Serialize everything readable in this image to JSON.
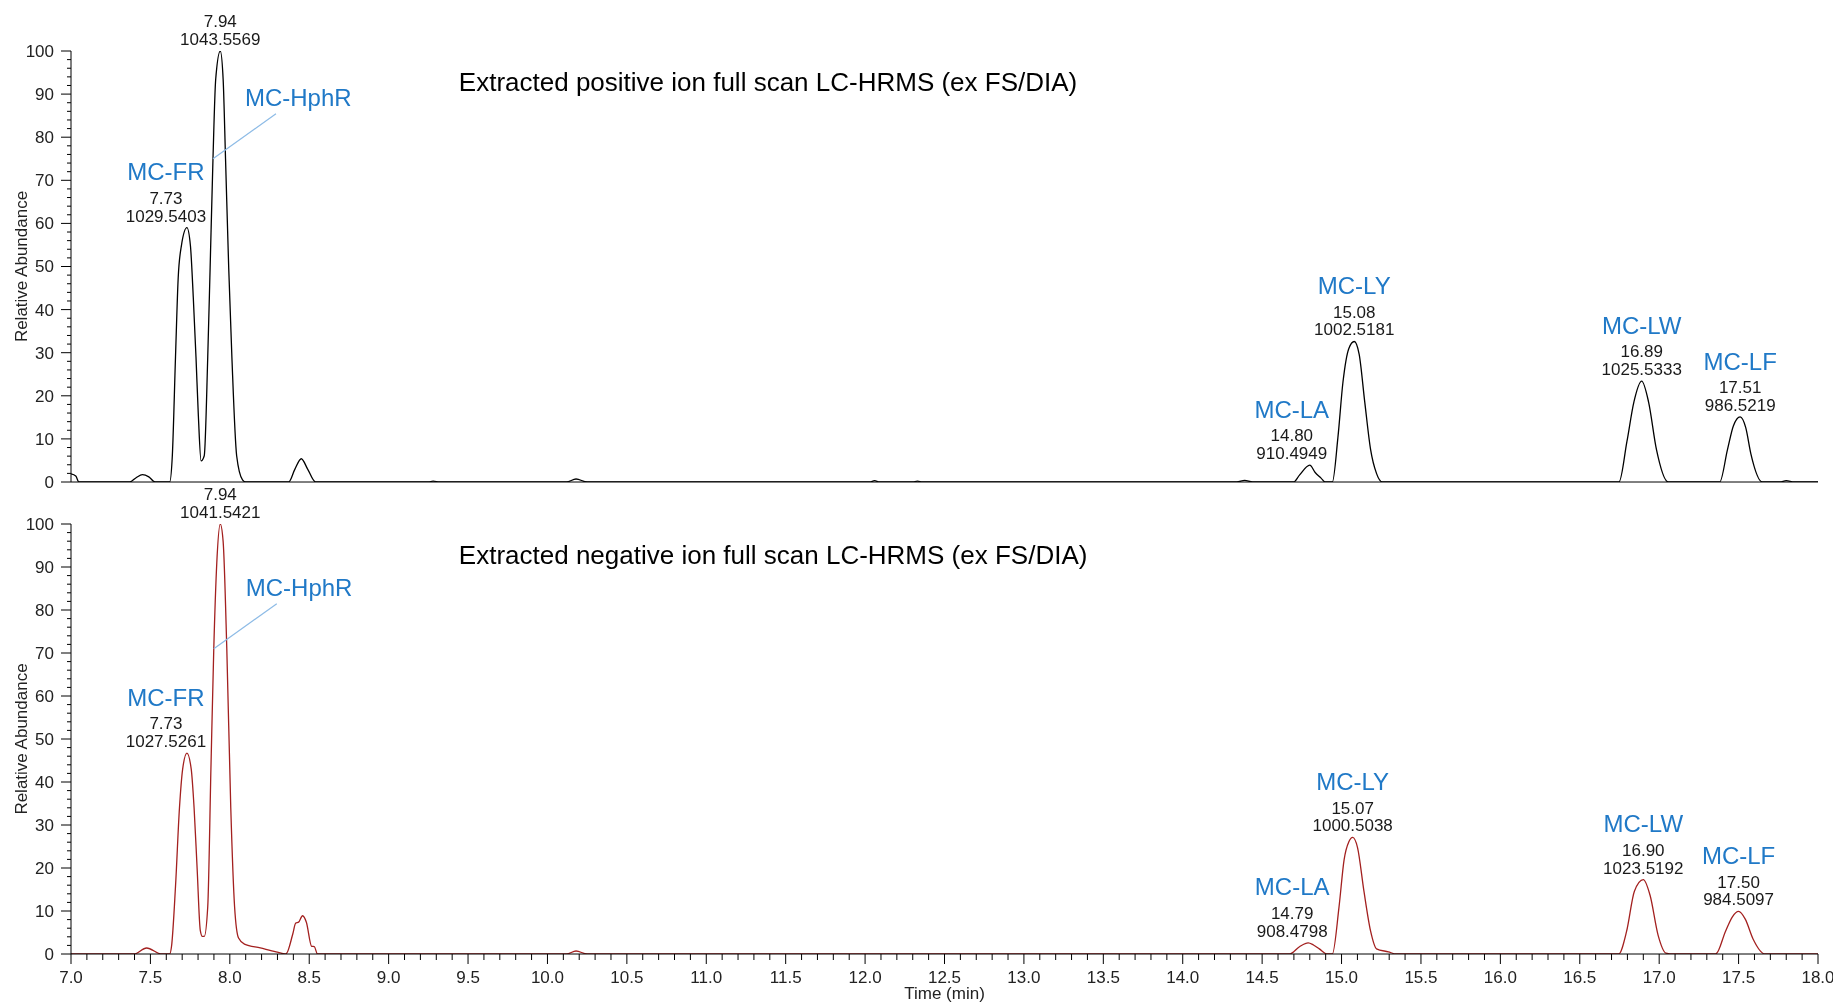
{
  "chart_data": [
    {
      "type": "line",
      "title": "Extracted positive ion full scan LC-HRMS (ex FS/DIA)",
      "ylabel": "Relative Abundance",
      "xlim": [
        7,
        18
      ],
      "ylim": [
        0,
        100
      ],
      "tick_labels": "y",
      "yticks": [
        0,
        {
          "value": 2,
          "label": null
        },
        {
          "value": 4,
          "label": null
        },
        {
          "value": 6,
          "label": null
        },
        {
          "value": 8,
          "label": null
        },
        10,
        {
          "value": 12,
          "label": null
        },
        {
          "value": 14,
          "label": null
        },
        {
          "value": 16,
          "label": null
        },
        {
          "value": 18,
          "label": null
        },
        20,
        {
          "value": 22,
          "label": null
        },
        {
          "value": 24,
          "label": null
        },
        {
          "value": 26,
          "label": null
        },
        {
          "value": 28,
          "label": null
        },
        30,
        {
          "value": 32,
          "label": null
        },
        {
          "value": 34,
          "label": null
        },
        {
          "value": 36,
          "label": null
        },
        {
          "value": 38,
          "label": null
        },
        40,
        {
          "value": 42,
          "label": null
        },
        {
          "value": 44,
          "label": null
        },
        {
          "value": 46,
          "label": null
        },
        {
          "value": 48,
          "label": null
        },
        50,
        {
          "value": 52,
          "label": null
        },
        {
          "value": 54,
          "label": null
        },
        {
          "value": 56,
          "label": null
        },
        {
          "value": 58,
          "label": null
        },
        60,
        {
          "value": 62,
          "label": null
        },
        {
          "value": 64,
          "label": null
        },
        {
          "value": 66,
          "label": null
        },
        {
          "value": 68,
          "label": null
        },
        70,
        {
          "value": 72,
          "label": null
        },
        {
          "value": 74,
          "label": null
        },
        {
          "value": 76,
          "label": null
        },
        {
          "value": 78,
          "label": null
        },
        80,
        {
          "value": 82,
          "label": null
        },
        {
          "value": 84,
          "label": null
        },
        {
          "value": 86,
          "label": null
        },
        {
          "value": 88,
          "label": null
        },
        90,
        {
          "value": 92,
          "label": null
        },
        {
          "value": 94,
          "label": null
        },
        {
          "value": 96,
          "label": null
        },
        {
          "value": 98,
          "label": null
        },
        100
      ],
      "color": "#000000",
      "x": [
        7.0,
        7.03,
        7.05,
        7.37,
        7.41,
        7.45,
        7.49,
        7.53,
        7.621,
        7.638,
        7.658,
        7.675,
        7.695,
        7.73,
        7.752,
        7.77,
        7.787,
        7.802,
        7.819,
        7.839,
        7.861,
        7.876,
        7.894,
        7.911,
        7.94,
        7.958,
        7.973,
        7.993,
        8.013,
        8.043,
        8.08,
        8.1,
        8.37,
        8.41,
        8.45,
        8.49,
        8.54,
        9.25,
        9.28,
        9.32,
        10.12,
        10.18,
        10.25,
        12.03,
        12.06,
        12.09,
        12.3,
        12.33,
        12.36,
        14.34,
        14.39,
        14.44,
        14.698,
        14.735,
        14.8,
        14.834,
        14.871,
        14.896,
        14.942,
        14.977,
        15.009,
        15.046,
        15.08,
        15.111,
        15.146,
        15.183,
        15.22,
        15.257,
        16.747,
        16.797,
        16.841,
        16.89,
        16.933,
        16.983,
        17.057,
        17.381,
        17.43,
        17.467,
        17.51,
        17.545,
        17.577,
        17.65,
        17.76,
        17.8,
        17.85,
        18.0
      ],
      "values": [
        1.9,
        1.4,
        0,
        0,
        1.0,
        1.7,
        1.2,
        0,
        0,
        6.1,
        29,
        47.4,
        54.8,
        59,
        54.8,
        42.8,
        29,
        15.3,
        4.9,
        6.1,
        29,
        49.7,
        75,
        93.4,
        100,
        93.4,
        75,
        49.7,
        29,
        6.1,
        0.5,
        0,
        0,
        3.0,
        5.4,
        3.0,
        0,
        0,
        0.2,
        0,
        0,
        0.7,
        0,
        0,
        0.3,
        0,
        0,
        0.2,
        0,
        0,
        0.4,
        0,
        0,
        1.6,
        3.9,
        2.2,
        0.9,
        0,
        0,
        10.3,
        23.2,
        31,
        32.6,
        29.6,
        18.6,
        7.5,
        2,
        0,
        0,
        9.4,
        18.6,
        23.4,
        18.6,
        7.5,
        0,
        0,
        7.5,
        13,
        15.1,
        12.6,
        6.6,
        0,
        0,
        0.3,
        0,
        0
      ],
      "annotations": [
        {
          "text": "MC-FR",
          "x": 7.73,
          "y": 59
        },
        {
          "text": "7.73\n1029.5403",
          "x": 7.73,
          "y": 59
        },
        {
          "text": "7.94\n1043.5569",
          "x": 7.94,
          "y": 100
        },
        {
          "text": "MC-HphR",
          "x": 7.894,
          "y": 75
        },
        {
          "text": "MC-LA",
          "x": 14.8,
          "y": 3.9
        },
        {
          "text": "14.80\n910.4949",
          "x": 14.8,
          "y": 3.9
        },
        {
          "text": "MC-LY",
          "x": 15.08,
          "y": 32.6
        },
        {
          "text": "15.08\n1002.5181",
          "x": 15.08,
          "y": 32.6
        },
        {
          "text": "MC-LW",
          "x": 16.89,
          "y": 23.4
        },
        {
          "text": "16.89\n1025.5333",
          "x": 16.89,
          "y": 23.4
        },
        {
          "text": "MC-LF",
          "x": 17.51,
          "y": 15.1
        },
        {
          "text": "17.51\n986.5219",
          "x": 17.51,
          "y": 15.1
        }
      ]
    },
    {
      "type": "line",
      "title": "Extracted negative ion full scan LC-HRMS (ex FS/DIA)",
      "ylabel": "Relative Abundance",
      "xlabel": "Time (min)",
      "xlim": [
        7,
        18
      ],
      "ylim": [
        0,
        100
      ],
      "xticks": [
        {
          "value": 7,
          "label": "7.0"
        },
        {
          "value": 7.1,
          "label": null
        },
        {
          "value": 7.2,
          "label": null
        },
        {
          "value": 7.3,
          "label": null
        },
        {
          "value": 7.4,
          "label": null
        },
        7.5,
        {
          "value": 7.6,
          "label": null
        },
        {
          "value": 7.7,
          "label": null
        },
        {
          "value": 7.8,
          "label": null
        },
        {
          "value": 7.9,
          "label": null
        },
        {
          "value": 8,
          "label": "8.0"
        },
        {
          "value": 8.1,
          "label": null
        },
        {
          "value": 8.2,
          "label": null
        },
        {
          "value": 8.3,
          "label": null
        },
        {
          "value": 8.4,
          "label": null
        },
        8.5,
        {
          "value": 8.6,
          "label": null
        },
        {
          "value": 8.7,
          "label": null
        },
        {
          "value": 8.8,
          "label": null
        },
        {
          "value": 8.9,
          "label": null
        },
        {
          "value": 9,
          "label": "9.0"
        },
        {
          "value": 9.1,
          "label": null
        },
        {
          "value": 9.2,
          "label": null
        },
        {
          "value": 9.3,
          "label": null
        },
        {
          "value": 9.4,
          "label": null
        },
        9.5,
        {
          "value": 9.6,
          "label": null
        },
        {
          "value": 9.7,
          "label": null
        },
        {
          "value": 9.8,
          "label": null
        },
        {
          "value": 9.9,
          "label": null
        },
        {
          "value": 10,
          "label": "10.0"
        },
        {
          "value": 10.1,
          "label": null
        },
        {
          "value": 10.2,
          "label": null
        },
        {
          "value": 10.3,
          "label": null
        },
        {
          "value": 10.4,
          "label": null
        },
        10.5,
        {
          "value": 10.6,
          "label": null
        },
        {
          "value": 10.7,
          "label": null
        },
        {
          "value": 10.8,
          "label": null
        },
        {
          "value": 10.9,
          "label": null
        },
        {
          "value": 11,
          "label": "11.0"
        },
        {
          "value": 11.1,
          "label": null
        },
        {
          "value": 11.2,
          "label": null
        },
        {
          "value": 11.3,
          "label": null
        },
        {
          "value": 11.4,
          "label": null
        },
        11.5,
        {
          "value": 11.6,
          "label": null
        },
        {
          "value": 11.7,
          "label": null
        },
        {
          "value": 11.8,
          "label": null
        },
        {
          "value": 11.9,
          "label": null
        },
        {
          "value": 12,
          "label": "12.0"
        },
        {
          "value": 12.1,
          "label": null
        },
        {
          "value": 12.2,
          "label": null
        },
        {
          "value": 12.3,
          "label": null
        },
        {
          "value": 12.4,
          "label": null
        },
        12.5,
        {
          "value": 12.6,
          "label": null
        },
        {
          "value": 12.7,
          "label": null
        },
        {
          "value": 12.8,
          "label": null
        },
        {
          "value": 12.9,
          "label": null
        },
        {
          "value": 13,
          "label": "13.0"
        },
        {
          "value": 13.1,
          "label": null
        },
        {
          "value": 13.2,
          "label": null
        },
        {
          "value": 13.3,
          "label": null
        },
        {
          "value": 13.4,
          "label": null
        },
        13.5,
        {
          "value": 13.6,
          "label": null
        },
        {
          "value": 13.7,
          "label": null
        },
        {
          "value": 13.8,
          "label": null
        },
        {
          "value": 13.9,
          "label": null
        },
        {
          "value": 14,
          "label": "14.0"
        },
        {
          "value": 14.1,
          "label": null
        },
        {
          "value": 14.2,
          "label": null
        },
        {
          "value": 14.3,
          "label": null
        },
        {
          "value": 14.4,
          "label": null
        },
        14.5,
        {
          "value": 14.6,
          "label": null
        },
        {
          "value": 14.7,
          "label": null
        },
        {
          "value": 14.8,
          "label": null
        },
        {
          "value": 14.9,
          "label": null
        },
        {
          "value": 15,
          "label": "15.0"
        },
        {
          "value": 15.1,
          "label": null
        },
        {
          "value": 15.2,
          "label": null
        },
        {
          "value": 15.3,
          "label": null
        },
        {
          "value": 15.4,
          "label": null
        },
        15.5,
        {
          "value": 15.6,
          "label": null
        },
        {
          "value": 15.7,
          "label": null
        },
        {
          "value": 15.8,
          "label": null
        },
        {
          "value": 15.9,
          "label": null
        },
        {
          "value": 16,
          "label": "16.0"
        },
        {
          "value": 16.1,
          "label": null
        },
        {
          "value": 16.2,
          "label": null
        },
        {
          "value": 16.3,
          "label": null
        },
        {
          "value": 16.4,
          "label": null
        },
        16.5,
        {
          "value": 16.6,
          "label": null
        },
        {
          "value": 16.7,
          "label": null
        },
        {
          "value": 16.8,
          "label": null
        },
        {
          "value": 16.9,
          "label": null
        },
        {
          "value": 17,
          "label": "17.0"
        },
        {
          "value": 17.1,
          "label": null
        },
        {
          "value": 17.2,
          "label": null
        },
        {
          "value": 17.3,
          "label": null
        },
        {
          "value": 17.4,
          "label": null
        },
        17.5,
        {
          "value": 17.6,
          "label": null
        },
        {
          "value": 17.7,
          "label": null
        },
        {
          "value": 17.8,
          "label": null
        },
        {
          "value": 17.9,
          "label": null
        },
        {
          "value": 18,
          "label": "18.0"
        }
      ],
      "yticks": [
        0,
        {
          "value": 2,
          "label": null
        },
        {
          "value": 4,
          "label": null
        },
        {
          "value": 6,
          "label": null
        },
        {
          "value": 8,
          "label": null
        },
        10,
        {
          "value": 12,
          "label": null
        },
        {
          "value": 14,
          "label": null
        },
        {
          "value": 16,
          "label": null
        },
        {
          "value": 18,
          "label": null
        },
        20,
        {
          "value": 22,
          "label": null
        },
        {
          "value": 24,
          "label": null
        },
        {
          "value": 26,
          "label": null
        },
        {
          "value": 28,
          "label": null
        },
        30,
        {
          "value": 32,
          "label": null
        },
        {
          "value": 34,
          "label": null
        },
        {
          "value": 36,
          "label": null
        },
        {
          "value": 38,
          "label": null
        },
        40,
        {
          "value": 42,
          "label": null
        },
        {
          "value": 44,
          "label": null
        },
        {
          "value": 46,
          "label": null
        },
        {
          "value": 48,
          "label": null
        },
        50,
        {
          "value": 52,
          "label": null
        },
        {
          "value": 54,
          "label": null
        },
        {
          "value": 56,
          "label": null
        },
        {
          "value": 58,
          "label": null
        },
        60,
        {
          "value": 62,
          "label": null
        },
        {
          "value": 64,
          "label": null
        },
        {
          "value": 66,
          "label": null
        },
        {
          "value": 68,
          "label": null
        },
        70,
        {
          "value": 72,
          "label": null
        },
        {
          "value": 74,
          "label": null
        },
        {
          "value": 76,
          "label": null
        },
        {
          "value": 78,
          "label": null
        },
        80,
        {
          "value": 82,
          "label": null
        },
        {
          "value": 84,
          "label": null
        },
        {
          "value": 86,
          "label": null
        },
        {
          "value": 88,
          "label": null
        },
        90,
        {
          "value": 92,
          "label": null
        },
        {
          "value": 94,
          "label": null
        },
        {
          "value": 96,
          "label": null
        },
        {
          "value": 98,
          "label": null
        },
        100
      ],
      "color": "#a3201f",
      "x": [
        7.0,
        7.397,
        7.476,
        7.571,
        7.621,
        7.633,
        7.658,
        7.683,
        7.703,
        7.73,
        7.757,
        7.775,
        7.794,
        7.814,
        7.827,
        7.839,
        7.861,
        7.881,
        7.899,
        7.918,
        7.94,
        7.958,
        7.981,
        8.006,
        8.03,
        8.055,
        8.092,
        8.192,
        8.291,
        8.353,
        8.396,
        8.415,
        8.433,
        8.458,
        8.482,
        8.515,
        8.532,
        8.552,
        10.12,
        10.18,
        10.25,
        14.673,
        14.735,
        14.79,
        14.823,
        14.86,
        14.91,
        14.942,
        14.984,
        15.016,
        15.046,
        15.07,
        15.101,
        15.141,
        15.183,
        15.22,
        15.295,
        15.344,
        16.745,
        16.795,
        16.844,
        16.9,
        16.943,
        16.993,
        17.043,
        17.09,
        17.356,
        17.418,
        17.46,
        17.5,
        17.542,
        17.591,
        17.666,
        18.0
      ],
      "values": [
        0,
        0,
        1.4,
        0,
        0,
        1.8,
        15.7,
        34,
        43,
        46.7,
        43,
        34,
        20,
        5.5,
        4.1,
        4.1,
        11,
        43,
        71,
        91,
        100,
        95.9,
        71,
        34,
        11,
        3.7,
        2.3,
        1.4,
        0.5,
        0,
        4.6,
        7.2,
        7.4,
        8.9,
        7.4,
        1.8,
        1.7,
        0,
        0,
        0.7,
        0,
        0,
        1.7,
        2.6,
        2.1,
        1.2,
        0,
        0,
        10.9,
        21.9,
        26.1,
        27.1,
        24.7,
        14.6,
        5.3,
        1.2,
        0.5,
        0,
        0,
        5.3,
        14.6,
        17.3,
        13.6,
        4.4,
        0.2,
        0,
        0,
        5.3,
        8.6,
        9.9,
        8.1,
        3.5,
        0,
        0
      ],
      "annotations": [
        {
          "text": "MC-FR",
          "x": 7.73,
          "y": 46.7
        },
        {
          "text": "7.73\n1027.5261",
          "x": 7.73,
          "y": 46.7
        },
        {
          "text": "7.94\n1041.5421",
          "x": 7.94,
          "y": 100
        },
        {
          "text": "MC-HphR",
          "x": 7.899,
          "y": 71
        },
        {
          "text": "MC-LA",
          "x": 14.79,
          "y": 2.6
        },
        {
          "text": "14.79\n908.4798",
          "x": 14.79,
          "y": 2.6
        },
        {
          "text": "MC-LY",
          "x": 15.07,
          "y": 27.1
        },
        {
          "text": "15.07\n1000.5038",
          "x": 15.07,
          "y": 27.1
        },
        {
          "text": "MC-LW",
          "x": 16.9,
          "y": 17.3
        },
        {
          "text": "16.90\n1023.5192",
          "x": 16.9,
          "y": 17.3
        },
        {
          "text": "MC-LF",
          "x": 17.5,
          "y": 9.9
        },
        {
          "text": "17.50\n984.5097",
          "x": 17.5,
          "y": 9.9
        }
      ]
    }
  ]
}
